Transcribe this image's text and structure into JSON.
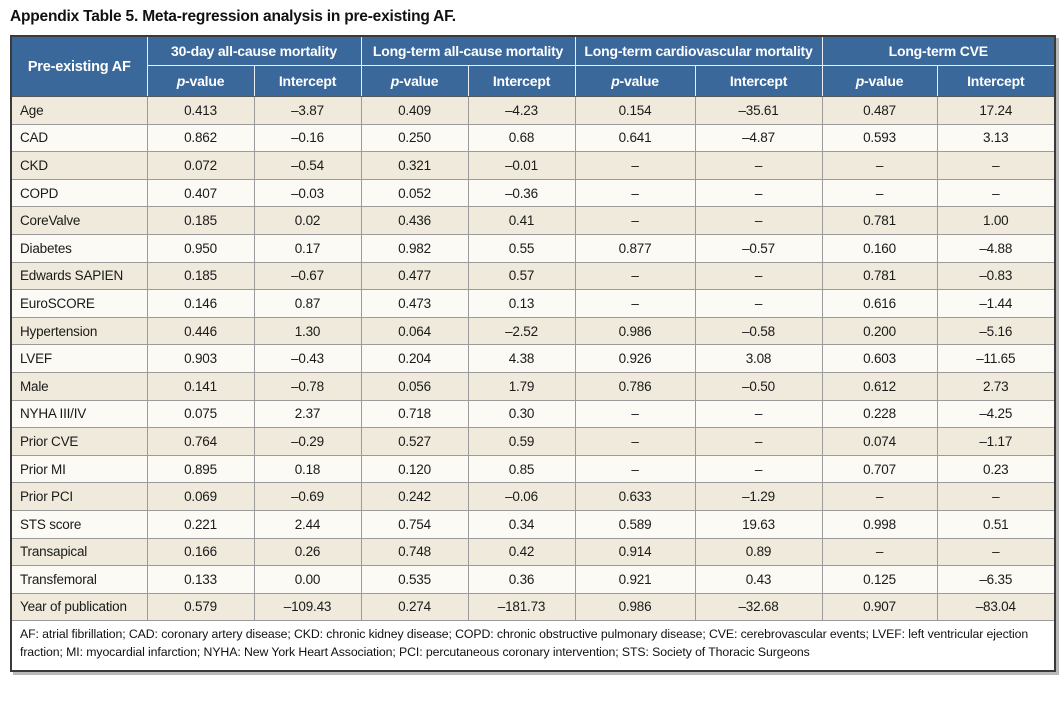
{
  "title": "Appendix Table 5. Meta-regression analysis in pre-existing AF.",
  "table": {
    "row_header": "Pre-existing AF",
    "groups": [
      {
        "label": "30-day all-cause mortality"
      },
      {
        "label": "Long-term all-cause mortality"
      },
      {
        "label": "Long-term cardiovascular mortality"
      },
      {
        "label": "Long-term CVE"
      }
    ],
    "subheaders": {
      "p_italic": "p",
      "p_rest": "-value",
      "intercept": "Intercept"
    },
    "columns_per_group": [
      "p-value",
      "Intercept"
    ],
    "rows": [
      {
        "label": "Age",
        "values": [
          "0.413",
          "–3.87",
          "0.409",
          "–4.23",
          "0.154",
          "–35.61",
          "0.487",
          "17.24"
        ]
      },
      {
        "label": "CAD",
        "values": [
          "0.862",
          "–0.16",
          "0.250",
          "0.68",
          "0.641",
          "–4.87",
          "0.593",
          "3.13"
        ]
      },
      {
        "label": "CKD",
        "values": [
          "0.072",
          "–0.54",
          "0.321",
          "–0.01",
          "–",
          "–",
          "–",
          "–"
        ]
      },
      {
        "label": "COPD",
        "values": [
          "0.407",
          "–0.03",
          "0.052",
          "–0.36",
          "–",
          "–",
          "–",
          "–"
        ]
      },
      {
        "label": "CoreValve",
        "values": [
          "0.185",
          "0.02",
          "0.436",
          "0.41",
          "–",
          "–",
          "0.781",
          "1.00"
        ]
      },
      {
        "label": "Diabetes",
        "values": [
          "0.950",
          "0.17",
          "0.982",
          "0.55",
          "0.877",
          "–0.57",
          "0.160",
          "–4.88"
        ]
      },
      {
        "label": "Edwards SAPIEN",
        "values": [
          "0.185",
          "–0.67",
          "0.477",
          "0.57",
          "–",
          "–",
          "0.781",
          "–0.83"
        ]
      },
      {
        "label": "EuroSCORE",
        "values": [
          "0.146",
          "0.87",
          "0.473",
          "0.13",
          "–",
          "–",
          "0.616",
          "–1.44"
        ]
      },
      {
        "label": "Hypertension",
        "values": [
          "0.446",
          "1.30",
          "0.064",
          "–2.52",
          "0.986",
          "–0.58",
          "0.200",
          "–5.16"
        ]
      },
      {
        "label": "LVEF",
        "values": [
          "0.903",
          "–0.43",
          "0.204",
          "4.38",
          "0.926",
          "3.08",
          "0.603",
          "–11.65"
        ]
      },
      {
        "label": "Male",
        "values": [
          "0.141",
          "–0.78",
          "0.056",
          "1.79",
          "0.786",
          "–0.50",
          "0.612",
          "2.73"
        ]
      },
      {
        "label": "NYHA III/IV",
        "values": [
          "0.075",
          "2.37",
          "0.718",
          "0.30",
          "–",
          "–",
          "0.228",
          "–4.25"
        ]
      },
      {
        "label": "Prior CVE",
        "values": [
          "0.764",
          "–0.29",
          "0.527",
          "0.59",
          "–",
          "–",
          "0.074",
          "–1.17"
        ]
      },
      {
        "label": "Prior MI",
        "values": [
          "0.895",
          "0.18",
          "0.120",
          "0.85",
          "–",
          "–",
          "0.707",
          "0.23"
        ]
      },
      {
        "label": "Prior PCI",
        "values": [
          "0.069",
          "–0.69",
          "0.242",
          "–0.06",
          "0.633",
          "–1.29",
          "–",
          "–"
        ]
      },
      {
        "label": "STS score",
        "values": [
          "0.221",
          "2.44",
          "0.754",
          "0.34",
          "0.589",
          "19.63",
          "0.998",
          "0.51"
        ]
      },
      {
        "label": "Transapical",
        "values": [
          "0.166",
          "0.26",
          "0.748",
          "0.42",
          "0.914",
          "0.89",
          "–",
          "–"
        ]
      },
      {
        "label": "Transfemoral",
        "values": [
          "0.133",
          "0.00",
          "0.535",
          "0.36",
          "0.921",
          "0.43",
          "0.125",
          "–6.35"
        ]
      },
      {
        "label": "Year of publication",
        "values": [
          "0.579",
          "–109.43",
          "0.274",
          "–181.73",
          "0.986",
          "–32.68",
          "0.907",
          "–83.04"
        ]
      }
    ],
    "footnote": "AF: atrial fibrillation; CAD: coronary artery disease; CKD: chronic kidney disease; COPD: chronic obstructive pulmonary disease; CVE: cerebrovascular events; LVEF: left ventricular ejection fraction; MI: myocardial infarction; NYHA: New York Heart Association; PCI: percutaneous coronary intervention; STS: Society of Thoracic Surgeons"
  },
  "colors": {
    "header_bg": "#3a689b",
    "header_text": "#ffffff",
    "header_divider": "#e9eef4",
    "row_odd": "#efeadb",
    "row_even": "#fbfaf5",
    "grid": "#9b9b9b",
    "outer_border": "#3a3a3a",
    "body_text": "#1a1a1a"
  }
}
